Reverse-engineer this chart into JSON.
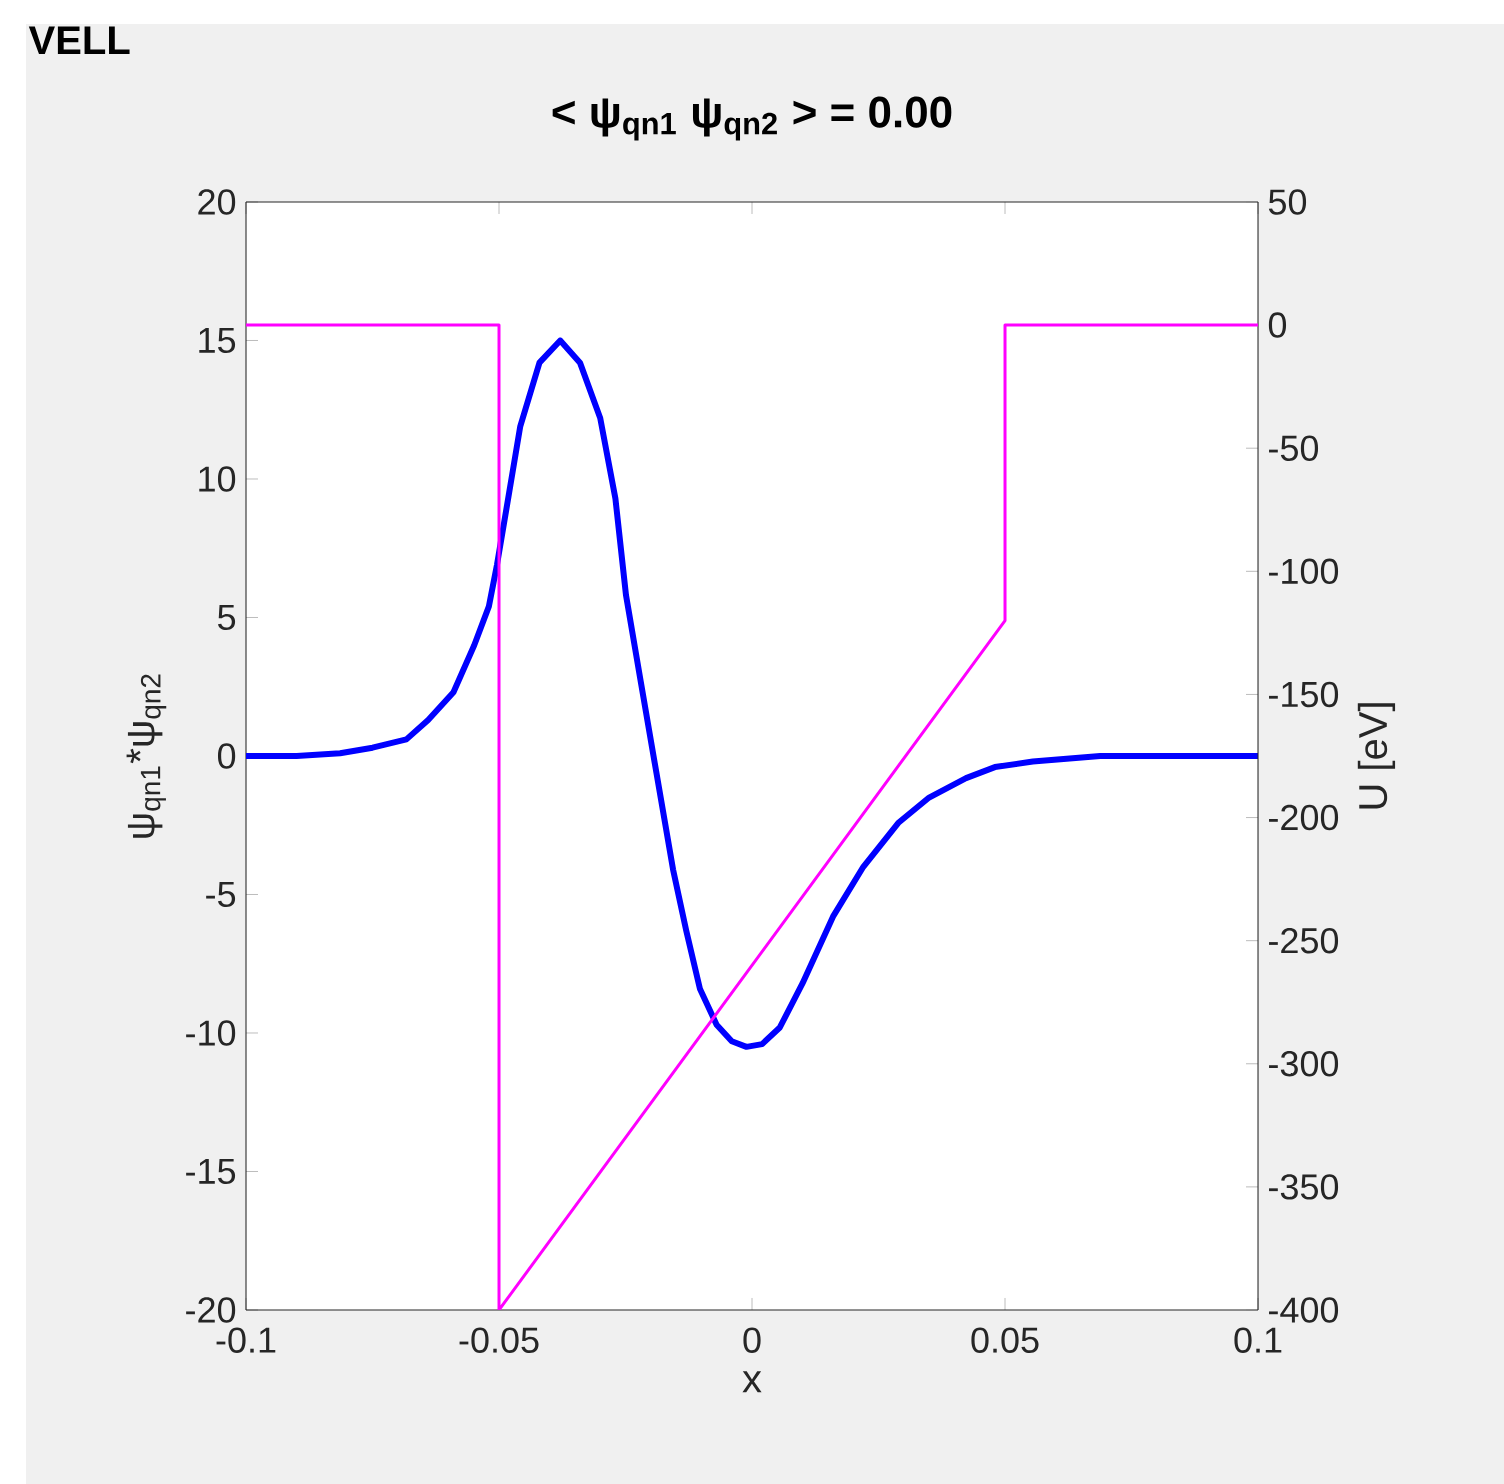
{
  "chart_data": {
    "type": "line",
    "title": "< ψ$_{qn1}$  ψ$_{qn2}$ >  =  0.00",
    "xlabel": "x",
    "ylabel": "ψ$_{qn1}$*ψ$_{qn2}$",
    "y2label": "U  [eV]",
    "annotations": [
      "VELL"
    ],
    "xlim": [
      -0.1,
      0.1
    ],
    "xticks": [
      -0.1,
      -0.05,
      0,
      0.05,
      0.1
    ],
    "ylim": [
      -20,
      20
    ],
    "yticks": [
      -20,
      -15,
      -10,
      -5,
      0,
      5,
      10,
      15,
      20
    ],
    "y2lim": [
      -400,
      50
    ],
    "y2ticks": [
      -400,
      -350,
      -300,
      -250,
      -200,
      -150,
      -100,
      -50,
      0,
      50
    ],
    "grid": false,
    "series": [
      {
        "color": "#0000ff",
        "x": [
          -0.1,
          -0.09,
          -0.0814,
          -0.075,
          -0.0683,
          -0.064,
          -0.059,
          -0.0549,
          -0.052,
          -0.0504,
          -0.048,
          -0.0458,
          -0.042,
          -0.0379,
          -0.034,
          -0.03,
          -0.027,
          -0.0249,
          -0.022,
          -0.0189,
          -0.0156,
          -0.013,
          -0.0103,
          -0.007,
          -0.004,
          -0.0011,
          0.002,
          0.0055,
          0.01,
          0.016,
          0.022,
          0.029,
          0.035,
          0.0423,
          0.048,
          0.0555,
          0.0688,
          0.08,
          0.1
        ],
        "values": [
          0,
          0,
          0.1,
          0.3,
          0.6,
          1.3,
          2.3,
          4.0,
          5.4,
          6.9,
          9.5,
          11.9,
          14.2,
          15.0,
          14.2,
          12.2,
          9.3,
          5.8,
          2.7,
          -0.6,
          -4.1,
          -6.3,
          -8.4,
          -9.7,
          -10.3,
          -10.5,
          -10.4,
          -9.8,
          -8.2,
          -5.8,
          -4.0,
          -2.4,
          -1.5,
          -0.8,
          -0.4,
          -0.2,
          0,
          0,
          0
        ]
      },
      {
        "color": "#ff00ff",
        "axis": "y2",
        "x": [
          -0.1,
          -0.05,
          -0.05,
          0.05,
          0.05,
          0.1
        ],
        "values": [
          0,
          0,
          -400,
          -120,
          0,
          0
        ]
      }
    ]
  }
}
